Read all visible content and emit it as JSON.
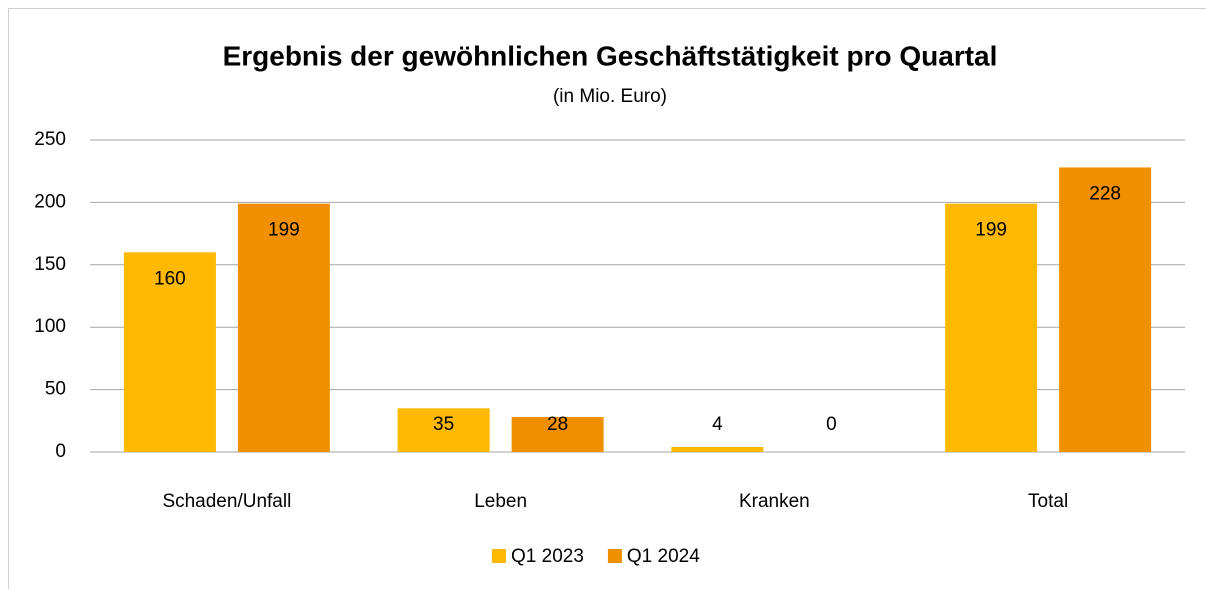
{
  "chart_data": {
    "type": "bar",
    "title": "Ergebnis der gewöhnlichen Geschäftstätigkeit pro Quartal",
    "subtitle": "(in Mio. Euro)",
    "categories": [
      "Schaden/Unfall",
      "Leben",
      "Kranken",
      "Total"
    ],
    "series": [
      {
        "name": "Q1 2023",
        "color": "#ffb900",
        "values": [
          160,
          35,
          4,
          199
        ]
      },
      {
        "name": "Q1 2024",
        "color": "#f09000",
        "values": [
          199,
          28,
          0,
          228
        ]
      }
    ],
    "ylim": [
      0,
      250
    ],
    "yticks": [
      0,
      50,
      100,
      150,
      200,
      250
    ],
    "grid": true,
    "legend": "bottom"
  }
}
